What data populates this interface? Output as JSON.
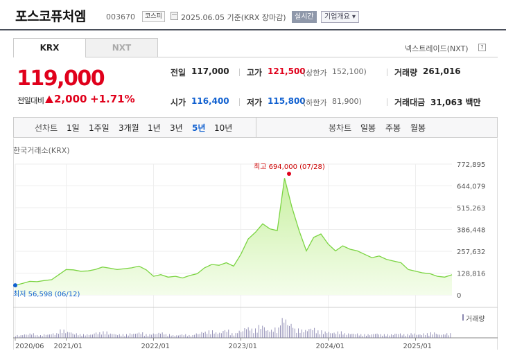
{
  "header": {
    "company": "포스코퓨처엠",
    "code": "003670",
    "market": "코스피",
    "date": "2025.06.05  기준(KRX 장마감)",
    "realtime": "실시간",
    "company_info": "기업개요 ▾"
  },
  "tabs": {
    "krx": "KRX",
    "nxt": "NXT",
    "nxt_link": "넥스트레이드(NXT)",
    "help": "?"
  },
  "quote": {
    "price": "119,000",
    "change_label": "전일대비",
    "change": "2,000",
    "change_pct": "+1.71%",
    "prev_label": "전일",
    "prev": "117,000",
    "high_label": "고가",
    "high": "121,500",
    "upper_limit_label": "(상한가",
    "upper_limit": "152,100)",
    "volume_label": "거래량",
    "volume": "261,016",
    "open_label": "시가",
    "open": "116,400",
    "low_label": "저가",
    "low": "115,800",
    "lower_limit_label": "(하한가",
    "lower_limit": "81,900)",
    "amount_label": "거래대금",
    "amount": "31,063 백만"
  },
  "periods": {
    "line_chart_label": "선차트",
    "items": [
      "1일",
      "1주일",
      "3개월",
      "1년",
      "3년",
      "5년",
      "10년"
    ],
    "active": "5년",
    "candle_label": "봉차트",
    "candle_items": [
      "일봉",
      "주봉",
      "월봉"
    ]
  },
  "colors": {
    "up": "#e0001b",
    "down": "#1060d0",
    "line": "#7bd442",
    "area": "#eafbd9",
    "volume": "#8a87b0"
  },
  "chart_data": {
    "type": "area",
    "source_label": "한국거래소(KRX)",
    "y_ticks": [
      "772,895",
      "644,079",
      "515,263",
      "386,448",
      "257,632",
      "128,816",
      "0"
    ],
    "ylim": [
      0,
      772895
    ],
    "x_ticks": [
      "2020/06",
      "2021/01",
      "2022/01",
      "2023/01",
      "2024/01",
      "2025/01"
    ],
    "max_annotation": "최고 694,000 (07/28)",
    "max_value": 694000,
    "min_annotation": "최저 56,598 (06/12)",
    "min_value": 56598,
    "volume_label": "거래량",
    "x": [
      "2020-06",
      "2020-07",
      "2020-08",
      "2020-09",
      "2020-10",
      "2020-11",
      "2020-12",
      "2021-01",
      "2021-02",
      "2021-03",
      "2021-04",
      "2021-05",
      "2021-06",
      "2021-07",
      "2021-08",
      "2021-09",
      "2021-10",
      "2021-11",
      "2021-12",
      "2022-01",
      "2022-02",
      "2022-03",
      "2022-04",
      "2022-05",
      "2022-06",
      "2022-07",
      "2022-08",
      "2022-09",
      "2022-10",
      "2022-11",
      "2022-12",
      "2023-01",
      "2023-02",
      "2023-03",
      "2023-04",
      "2023-05",
      "2023-06",
      "2023-07",
      "2023-08",
      "2023-09",
      "2023-10",
      "2023-11",
      "2023-12",
      "2024-01",
      "2024-02",
      "2024-03",
      "2024-04",
      "2024-05",
      "2024-06",
      "2024-07",
      "2024-08",
      "2024-09",
      "2024-10",
      "2024-11",
      "2024-12",
      "2025-01",
      "2025-02",
      "2025-03",
      "2025-04",
      "2025-05",
      "2025-06"
    ],
    "values": [
      57000,
      68000,
      80000,
      78000,
      85000,
      90000,
      120000,
      150000,
      148000,
      140000,
      142000,
      150000,
      165000,
      158000,
      150000,
      155000,
      160000,
      170000,
      148000,
      110000,
      120000,
      105000,
      110000,
      100000,
      115000,
      125000,
      160000,
      180000,
      175000,
      190000,
      170000,
      240000,
      330000,
      370000,
      420000,
      390000,
      380000,
      690000,
      520000,
      380000,
      260000,
      340000,
      360000,
      300000,
      260000,
      290000,
      270000,
      260000,
      240000,
      220000,
      230000,
      210000,
      200000,
      190000,
      150000,
      140000,
      130000,
      125000,
      110000,
      105000,
      119000
    ],
    "volume": [
      3,
      4,
      5,
      3,
      4,
      5,
      9,
      7,
      5,
      4,
      4,
      6,
      7,
      5,
      4,
      4,
      5,
      6,
      4,
      5,
      6,
      4,
      3,
      4,
      3,
      5,
      7,
      8,
      6,
      9,
      5,
      8,
      12,
      10,
      14,
      9,
      11,
      22,
      16,
      10,
      9,
      11,
      8,
      7,
      6,
      7,
      5,
      5,
      4,
      4,
      5,
      4,
      4,
      5,
      4,
      5,
      4,
      5,
      6,
      4,
      5
    ]
  }
}
